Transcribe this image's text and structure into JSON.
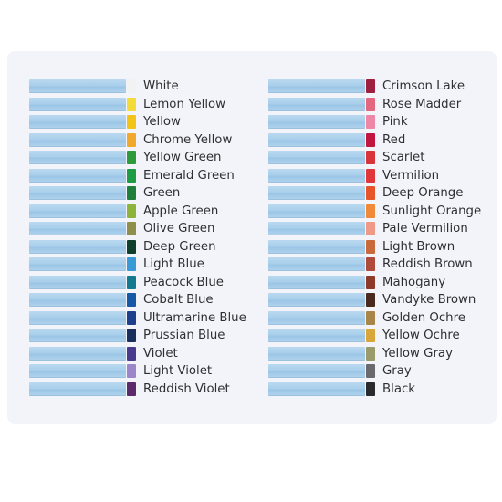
{
  "columns": [
    {
      "items": [
        {
          "label": "White",
          "color": "#f2f2f2"
        },
        {
          "label": "Lemon Yellow",
          "color": "#f3dc3a"
        },
        {
          "label": "Yellow",
          "color": "#f2c418"
        },
        {
          "label": "Chrome Yellow",
          "color": "#f0a92c"
        },
        {
          "label": "Yellow Green",
          "color": "#2f9a3c"
        },
        {
          "label": "Emerald Green",
          "color": "#1f9a45"
        },
        {
          "label": "Green",
          "color": "#1e7e3a"
        },
        {
          "label": "Apple Green",
          "color": "#8cb43a"
        },
        {
          "label": "Olive Green",
          "color": "#8d8f4a"
        },
        {
          "label": "Deep Green",
          "color": "#0f3f2a"
        },
        {
          "label": "Light Blue",
          "color": "#3a9ad6"
        },
        {
          "label": "Peacock Blue",
          "color": "#137a8e"
        },
        {
          "label": "Cobalt Blue",
          "color": "#1657a6"
        },
        {
          "label": "Ultramarine Blue",
          "color": "#1e3f8c"
        },
        {
          "label": "Prussian Blue",
          "color": "#1a2f5c"
        },
        {
          "label": "Violet",
          "color": "#4a3a8c"
        },
        {
          "label": "Light Violet",
          "color": "#9a86c8"
        },
        {
          "label": "Reddish Violet",
          "color": "#5a2a6a"
        }
      ]
    },
    {
      "items": [
        {
          "label": "Crimson Lake",
          "color": "#9e1f3f"
        },
        {
          "label": "Rose Madder",
          "color": "#e2677f"
        },
        {
          "label": "Pink",
          "color": "#ee86a6"
        },
        {
          "label": "Red",
          "color": "#c0163f"
        },
        {
          "label": "Scarlet",
          "color": "#d8343a"
        },
        {
          "label": "Vermilion",
          "color": "#e0383a"
        },
        {
          "label": "Deep Orange",
          "color": "#e8542a"
        },
        {
          "label": "Sunlight Orange",
          "color": "#f08a3a"
        },
        {
          "label": "Pale Vermilion",
          "color": "#ee9a86"
        },
        {
          "label": "Light Brown",
          "color": "#c86a3a"
        },
        {
          "label": "Reddish Brown",
          "color": "#b04a3a"
        },
        {
          "label": "Mahogany",
          "color": "#8e3a2a"
        },
        {
          "label": "Vandyke Brown",
          "color": "#4a2a1e"
        },
        {
          "label": "Golden Ochre",
          "color": "#a8864a"
        },
        {
          "label": "Yellow Ochre",
          "color": "#d8a63a"
        },
        {
          "label": "Yellow Gray",
          "color": "#9a9a6a"
        },
        {
          "label": "Gray",
          "color": "#6a6a6e"
        },
        {
          "label": "Black",
          "color": "#2a2a2e"
        }
      ]
    }
  ]
}
